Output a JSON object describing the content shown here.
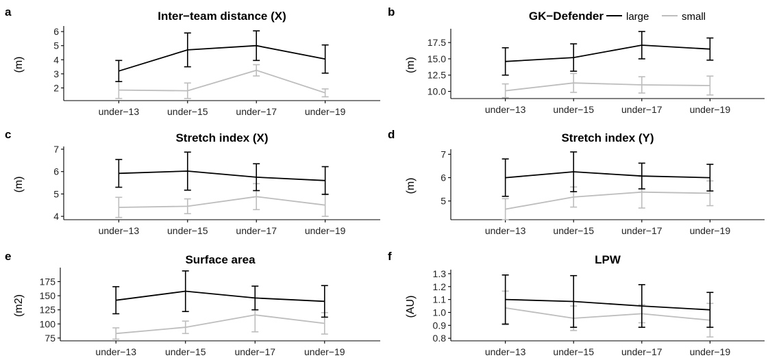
{
  "colors": {
    "large": "#000000",
    "small": "#bdbdbd",
    "axis": "#000000"
  },
  "legend": {
    "items": [
      {
        "key": "large",
        "label": "large"
      },
      {
        "key": "small",
        "label": "small"
      }
    ]
  },
  "chart_data": [
    {
      "panel": "a",
      "type": "line",
      "title": "Inter−team distance (X)",
      "ylabel": "(m)",
      "categories": [
        "under−13",
        "under−15",
        "under−17",
        "under−19"
      ],
      "ylim": [
        1.1,
        6.2
      ],
      "yticks": [
        2,
        3,
        4,
        5,
        6
      ],
      "decimals": 0,
      "series": [
        {
          "name": "large",
          "values": [
            3.2,
            4.7,
            5.0,
            4.05
          ],
          "errors": [
            0.75,
            1.2,
            1.05,
            1.0
          ]
        },
        {
          "name": "small",
          "values": [
            1.85,
            1.8,
            3.25,
            1.65
          ],
          "errors": [
            0.6,
            0.55,
            0.4,
            0.28
          ]
        }
      ]
    },
    {
      "panel": "b",
      "type": "line",
      "title": "GK−Defender",
      "ylabel": "(m)",
      "categories": [
        "under−13",
        "under−15",
        "under−17",
        "under−19"
      ],
      "ylim": [
        8.9,
        19.2
      ],
      "yticks": [
        10.0,
        12.5,
        15.0,
        17.5
      ],
      "decimals": 1,
      "series": [
        {
          "name": "large",
          "values": [
            14.6,
            15.2,
            17.1,
            16.5
          ],
          "errors": [
            2.1,
            2.1,
            2.1,
            1.7
          ]
        },
        {
          "name": "small",
          "values": [
            10.1,
            11.3,
            11.0,
            10.9
          ],
          "errors": [
            1.05,
            1.45,
            1.25,
            1.45
          ]
        }
      ]
    },
    {
      "panel": "c",
      "type": "line",
      "title": "Stretch index (X)",
      "ylabel": "(m)",
      "categories": [
        "under−13",
        "under−15",
        "under−17",
        "under−19"
      ],
      "ylim": [
        3.85,
        7.0
      ],
      "yticks": [
        4,
        5,
        6,
        7
      ],
      "decimals": 0,
      "series": [
        {
          "name": "large",
          "values": [
            5.92,
            6.02,
            5.75,
            5.6
          ],
          "errors": [
            0.62,
            0.85,
            0.6,
            0.62
          ]
        },
        {
          "name": "small",
          "values": [
            4.4,
            4.45,
            4.88,
            4.5
          ],
          "errors": [
            0.45,
            0.33,
            0.58,
            0.5
          ]
        }
      ]
    },
    {
      "panel": "d",
      "type": "line",
      "title": "Stretch index (Y)",
      "ylabel": "(m)",
      "categories": [
        "under−13",
        "under−15",
        "under−17",
        "under−19"
      ],
      "ylim": [
        4.2,
        7.1
      ],
      "yticks": [
        5,
        6,
        7
      ],
      "decimals": 0,
      "series": [
        {
          "name": "large",
          "values": [
            6.0,
            6.25,
            6.07,
            6.0
          ],
          "errors": [
            0.8,
            0.85,
            0.55,
            0.57
          ]
        },
        {
          "name": "small",
          "values": [
            4.65,
            5.17,
            5.38,
            5.33
          ],
          "errors": [
            0.45,
            0.43,
            0.68,
            0.53
          ]
        }
      ]
    },
    {
      "panel": "e",
      "type": "line",
      "title": "Surface area",
      "ylabel": "(m2)",
      "categories": [
        "under−13",
        "under−15",
        "under−17",
        "under−19"
      ],
      "ylim": [
        70,
        195
      ],
      "yticks": [
        75,
        100,
        125,
        150,
        175
      ],
      "decimals": 0,
      "series": [
        {
          "name": "large",
          "values": [
            142,
            158,
            146,
            140
          ],
          "errors": [
            24,
            36,
            21,
            28
          ]
        },
        {
          "name": "small",
          "values": [
            83,
            94,
            116,
            101
          ],
          "errors": [
            10,
            11,
            30,
            19
          ]
        }
      ]
    },
    {
      "panel": "f",
      "type": "line",
      "title": "LPW",
      "ylabel": "(AU)",
      "categories": [
        "under−13",
        "under−15",
        "under−17",
        "under−19"
      ],
      "ylim": [
        0.78,
        1.31
      ],
      "yticks": [
        0.8,
        0.9,
        1.0,
        1.1,
        1.2,
        1.3
      ],
      "decimals": 1,
      "series": [
        {
          "name": "large",
          "values": [
            1.1,
            1.085,
            1.05,
            1.02
          ],
          "errors": [
            0.19,
            0.2,
            0.165,
            0.135
          ]
        },
        {
          "name": "small",
          "values": [
            1.035,
            0.955,
            0.99,
            0.94
          ],
          "errors": [
            0.13,
            0.095,
            0.07,
            0.13
          ]
        }
      ]
    }
  ]
}
